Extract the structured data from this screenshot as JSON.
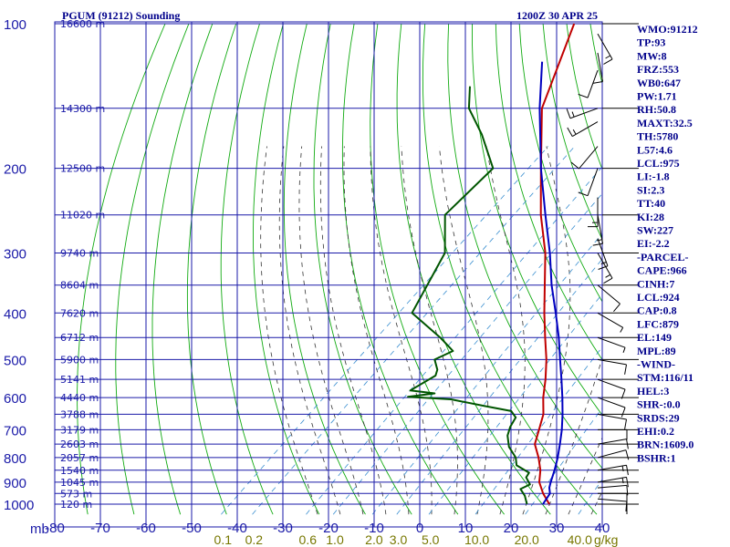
{
  "header": {
    "station": "PGUM (91212) Sounding",
    "time": "1200Z 30 APR 25"
  },
  "colors": {
    "grid": "#1a1aa8",
    "dry_adiabat": "#11aa11",
    "moist_adiabat": "#333333",
    "mixing_ratio": "#3a8fd0",
    "temperature": "#c00000",
    "dewpoint": "#005500",
    "parcel": "#0000c0",
    "mixing_label": "#777700",
    "text": "#00008b"
  },
  "chart_data": {
    "type": "line",
    "subtype": "skew-t log-p",
    "xlabel": "",
    "ylabel": "mb",
    "pressure_ticks": [
      100,
      200,
      300,
      400,
      500,
      600,
      700,
      800,
      900,
      1000
    ],
    "temp_ticks": [
      -80,
      -70,
      -60,
      -50,
      -40,
      -30,
      -20,
      -10,
      0,
      10,
      20,
      30,
      40
    ],
    "xlim": [
      -80,
      40
    ],
    "ylim": [
      100,
      1050
    ],
    "height_labels": [
      {
        "p": 100,
        "label": "16600 m"
      },
      {
        "p": 150,
        "label": "14300 m"
      },
      {
        "p": 200,
        "label": "12500 m"
      },
      {
        "p": 250,
        "label": "11020 m"
      },
      {
        "p": 300,
        "label": "9740 m"
      },
      {
        "p": 350,
        "label": "8604 m"
      },
      {
        "p": 400,
        "label": "7620 m"
      },
      {
        "p": 450,
        "label": "6712 m"
      },
      {
        "p": 500,
        "label": "5900 m"
      },
      {
        "p": 550,
        "label": "5141 m"
      },
      {
        "p": 600,
        "label": "4440 m"
      },
      {
        "p": 650,
        "label": "3788 m"
      },
      {
        "p": 700,
        "label": "3179 m"
      },
      {
        "p": 750,
        "label": "2603 m"
      },
      {
        "p": 800,
        "label": "2057 m"
      },
      {
        "p": 850,
        "label": "1540 m"
      },
      {
        "p": 900,
        "label": "1045 m"
      },
      {
        "p": 950,
        "label": "573 m"
      },
      {
        "p": 1000,
        "label": "120 m"
      }
    ],
    "mixing_ratio_labels": [
      "0.1",
      "0.2",
      "0.6",
      "1.0",
      "2.0",
      "3.0",
      "5.0",
      "10.0",
      "20.0",
      "40.0"
    ],
    "mixing_ratio_unit": "g/kg",
    "series": [
      {
        "name": "",
        "role": "temperature",
        "points": [
          {
            "p": 1000,
            "t": 28.4
          },
          {
            "p": 950,
            "t": 24.5
          },
          {
            "p": 900,
            "t": 21.0
          },
          {
            "p": 850,
            "t": 18.4
          },
          {
            "p": 800,
            "t": 15.0
          },
          {
            "p": 750,
            "t": 11.0
          },
          {
            "p": 700,
            "t": 8.5
          },
          {
            "p": 650,
            "t": 5.8
          },
          {
            "p": 600,
            "t": 1.8
          },
          {
            "p": 550,
            "t": -2.0
          },
          {
            "p": 500,
            "t": -6.5
          },
          {
            "p": 450,
            "t": -12.0
          },
          {
            "p": 400,
            "t": -18.0
          },
          {
            "p": 350,
            "t": -24.5
          },
          {
            "p": 300,
            "t": -32.0
          },
          {
            "p": 250,
            "t": -42.0
          },
          {
            "p": 200,
            "t": -53.0
          },
          {
            "p": 150,
            "t": -67.0
          },
          {
            "p": 100,
            "t": -80.0
          }
        ]
      },
      {
        "name": "",
        "role": "dewpoint",
        "points": [
          {
            "p": 1000,
            "t": 23.5
          },
          {
            "p": 960,
            "t": 21.0
          },
          {
            "p": 930,
            "t": 18.5
          },
          {
            "p": 910,
            "t": 19.5
          },
          {
            "p": 880,
            "t": 17.0
          },
          {
            "p": 860,
            "t": 16.5
          },
          {
            "p": 830,
            "t": 12.0
          },
          {
            "p": 800,
            "t": 10.0
          },
          {
            "p": 760,
            "t": 6.0
          },
          {
            "p": 720,
            "t": 3.0
          },
          {
            "p": 690,
            "t": 1.5
          },
          {
            "p": 660,
            "t": 0.5
          },
          {
            "p": 640,
            "t": -2.0
          },
          {
            "p": 625,
            "t": -9.0
          },
          {
            "p": 605,
            "t": -18.0
          },
          {
            "p": 598,
            "t": -28.0
          },
          {
            "p": 588,
            "t": -23.0
          },
          {
            "p": 580,
            "t": -29.0
          },
          {
            "p": 540,
            "t": -27.0
          },
          {
            "p": 525,
            "t": -28.0
          },
          {
            "p": 500,
            "t": -31.0
          },
          {
            "p": 480,
            "t": -29.0
          },
          {
            "p": 450,
            "t": -35.0
          },
          {
            "p": 400,
            "t": -47.0
          },
          {
            "p": 300,
            "t": -54.0
          },
          {
            "p": 250,
            "t": -63.0
          },
          {
            "p": 200,
            "t": -63.5
          },
          {
            "p": 170,
            "t": -74.0
          },
          {
            "p": 150,
            "t": -83.0
          },
          {
            "p": 135,
            "t": -88.0
          }
        ]
      },
      {
        "name": "",
        "role": "parcel",
        "points": [
          {
            "p": 1000,
            "t": 27.0
          },
          {
            "p": 950,
            "t": 26.0
          },
          {
            "p": 924,
            "t": 24.5
          },
          {
            "p": 900,
            "t": 23.5
          },
          {
            "p": 850,
            "t": 21.5
          },
          {
            "p": 800,
            "t": 19.2
          },
          {
            "p": 750,
            "t": 16.5
          },
          {
            "p": 700,
            "t": 13.5
          },
          {
            "p": 650,
            "t": 10.0
          },
          {
            "p": 600,
            "t": 6.0
          },
          {
            "p": 550,
            "t": 1.5
          },
          {
            "p": 500,
            "t": -3.5
          },
          {
            "p": 450,
            "t": -9.0
          },
          {
            "p": 400,
            "t": -15.5
          },
          {
            "p": 350,
            "t": -23.0
          },
          {
            "p": 300,
            "t": -31.0
          },
          {
            "p": 250,
            "t": -41.0
          },
          {
            "p": 200,
            "t": -53.0
          },
          {
            "p": 150,
            "t": -67.5
          },
          {
            "p": 120,
            "t": -78.0
          }
        ]
      }
    ],
    "wind_barbs": [
      {
        "p": 1000,
        "dir": 90,
        "spd": 10
      },
      {
        "p": 975,
        "dir": 95,
        "spd": 10
      },
      {
        "p": 950,
        "dir": 90,
        "spd": 10
      },
      {
        "p": 925,
        "dir": 85,
        "spd": 10
      },
      {
        "p": 900,
        "dir": 80,
        "spd": 15
      },
      {
        "p": 850,
        "dir": 80,
        "spd": 15
      },
      {
        "p": 800,
        "dir": 75,
        "spd": 10
      },
      {
        "p": 750,
        "dir": 80,
        "spd": 10
      },
      {
        "p": 700,
        "dir": 90,
        "spd": 10
      },
      {
        "p": 650,
        "dir": 100,
        "spd": 10
      },
      {
        "p": 600,
        "dir": 110,
        "spd": 10
      },
      {
        "p": 550,
        "dir": 110,
        "spd": 10
      },
      {
        "p": 500,
        "dir": 100,
        "spd": 10
      },
      {
        "p": 450,
        "dir": 110,
        "spd": 5
      },
      {
        "p": 400,
        "dir": 120,
        "spd": 5
      },
      {
        "p": 350,
        "dir": 130,
        "spd": 10
      },
      {
        "p": 300,
        "dir": 150,
        "spd": 15
      },
      {
        "p": 280,
        "dir": 160,
        "spd": 15
      },
      {
        "p": 250,
        "dir": 170,
        "spd": 15
      },
      {
        "p": 230,
        "dir": 180,
        "spd": 15
      },
      {
        "p": 200,
        "dir": 200,
        "spd": 10
      },
      {
        "p": 180,
        "dir": 220,
        "spd": 10
      },
      {
        "p": 160,
        "dir": 240,
        "spd": 15
      },
      {
        "p": 150,
        "dir": 250,
        "spd": 15
      },
      {
        "p": 125,
        "dir": 200,
        "spd": 10
      },
      {
        "p": 115,
        "dir": 170,
        "spd": 10
      },
      {
        "p": 105,
        "dir": 150,
        "spd": 15
      }
    ]
  },
  "indices": [
    "WMO:91212",
    "TP:93",
    "MW:8",
    "FRZ:553",
    "WB0:647",
    "PW:1.71",
    "RH:50.8",
    "MAXT:32.5",
    "TH:5780",
    "L57:4.6",
    "LCL:975",
    "LI:-1.8",
    "SI:2.3",
    "TT:40",
    "KI:28",
    "SW:227",
    "EI:-2.2",
    "-PARCEL-",
    "CAPE:966",
    "CINH:7",
    "LCL:924",
    "CAP:0.8",
    "LFC:879",
    "EL:149",
    "MPL:89",
    "-WIND-",
    "STM:116/11",
    "HEL:3",
    "SHR-:0.0",
    "SRDS:29",
    "EHI:0.2",
    "BRN:1609.0",
    "BSHR:1"
  ]
}
